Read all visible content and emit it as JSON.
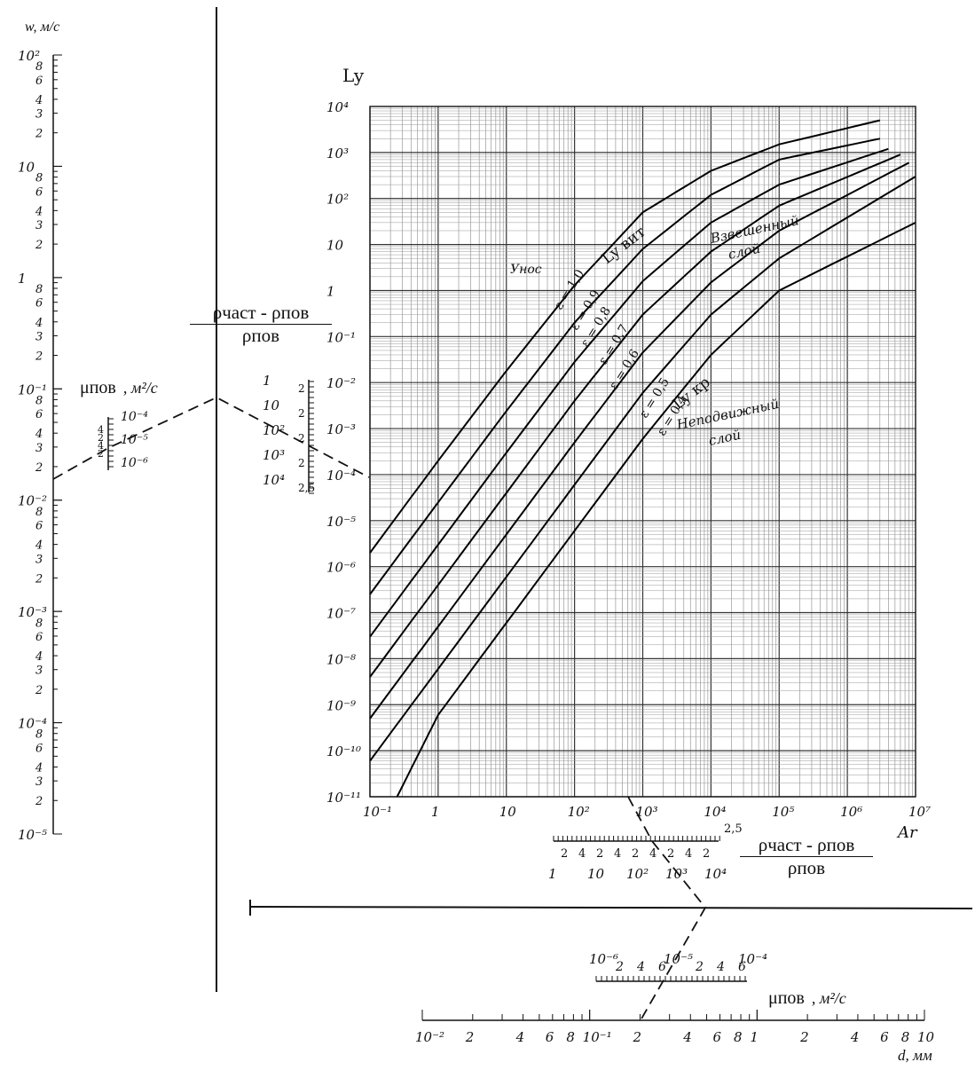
{
  "chart_data": {
    "type": "line",
    "title": "",
    "xlabel": "Ar",
    "ylabel": "Ly",
    "xscale": "log",
    "yscale": "log",
    "xlim": [
      0.1,
      10000000
    ],
    "ylim": [
      1e-11,
      10000
    ],
    "grid": true,
    "x_tick_labels": [
      "10⁻¹",
      "1",
      "10",
      "10²",
      "10³",
      "10⁴",
      "10⁵",
      "10⁶",
      "10⁷"
    ],
    "y_tick_labels": [
      "10⁴",
      "10³",
      "10²",
      "10",
      "1",
      "10⁻¹",
      "10⁻²",
      "10⁻³",
      "10⁻⁴",
      "10⁻⁵",
      "10⁻⁶",
      "10⁻⁷",
      "10⁻⁸",
      "10⁻⁹",
      "10⁻¹⁰",
      "10⁻¹¹"
    ],
    "series": [
      {
        "name": "ε = 1,0",
        "x": [
          0.1,
          1,
          10,
          100,
          1000,
          10000,
          100000,
          3000000
        ],
        "y": [
          2e-06,
          0.0002,
          0.018,
          1.3,
          50,
          400,
          1500,
          5000
        ]
      },
      {
        "name": "ε = 0,9",
        "x": [
          0.1,
          1,
          10,
          100,
          1000,
          10000,
          100000,
          3000000
        ],
        "y": [
          2.5e-07,
          2.5e-05,
          0.0024,
          0.2,
          8,
          120,
          700,
          2000
        ]
      },
      {
        "name": "ε = 0,8",
        "x": [
          0.1,
          1,
          10,
          100,
          1000,
          10000,
          100000,
          4000000
        ],
        "y": [
          3e-08,
          3e-06,
          0.0003,
          0.028,
          1.6,
          30,
          200,
          1200
        ]
      },
      {
        "name": "ε = 0,7",
        "x": [
          0.1,
          1,
          10,
          100,
          1000,
          10000,
          100000,
          6000000
        ],
        "y": [
          4e-09,
          4e-07,
          4e-05,
          0.004,
          0.3,
          7,
          70,
          900
        ]
      },
      {
        "name": "ε = 0,6",
        "x": [
          0.1,
          1,
          10,
          100,
          1000,
          10000,
          100000,
          8000000
        ],
        "y": [
          5e-10,
          5e-08,
          5e-06,
          0.0005,
          0.045,
          1.5,
          20,
          600
        ]
      },
      {
        "name": "ε = 0,5",
        "x": [
          0.1,
          1,
          10,
          100,
          1000,
          10000,
          100000,
          10000000
        ],
        "y": [
          6e-11,
          6e-09,
          6e-07,
          6e-05,
          0.006,
          0.3,
          5,
          300
        ]
      },
      {
        "name": "ε = 0,4",
        "x": [
          0.25,
          1,
          10,
          100,
          1000,
          10000,
          100000,
          10000000
        ],
        "y": [
          1e-11,
          6e-10,
          6e-08,
          6e-06,
          0.0006,
          0.04,
          1,
          30
        ]
      }
    ],
    "annotations": [
      "Ly вит",
      "Ly кр",
      "Унос",
      "Взвешенный слой",
      "Неподвижный слой",
      "ε = 1,0",
      "ε = 0,9",
      "ε = 0,8",
      "ε = 0,7",
      "ε = 0,6",
      "ε = 0,5",
      "ε = 0,4"
    ],
    "legend": "none"
  },
  "scales": {
    "w": {
      "label": "w, м/с",
      "decades": [
        "10²",
        "10",
        "1",
        "10⁻¹",
        "10⁻²",
        "10⁻³",
        "10⁻⁴",
        "10⁻⁵"
      ],
      "sub_labels": [
        "8",
        "6",
        "4",
        "3",
        "2"
      ]
    },
    "mu_left": {
      "label_sym": "μпов",
      "label_unit": ", м²/с",
      "ticks": [
        "10⁻⁴",
        "10⁻⁵",
        "10⁻⁶"
      ],
      "sub_labels": [
        "4",
        "2",
        "4",
        "2"
      ]
    },
    "rho_left": {
      "num": "ρчаст - ρпов",
      "den": "ρпов",
      "ticks": [
        "1",
        "10",
        "10²",
        "10³",
        "10⁴"
      ],
      "sub_labels": [
        "2",
        "2",
        "2",
        "2",
        "2,5"
      ]
    },
    "rho_bottom": {
      "num": "ρчаст - ρпов",
      "den": "ρпов",
      "ticks": [
        "1",
        "10",
        "10²",
        "10³",
        "10⁴"
      ],
      "sub_labels": [
        "2",
        "4",
        "2",
        "4",
        "2",
        "4",
        "2",
        "4",
        "2"
      ],
      "end_label": "2,5"
    },
    "mu_bottom": {
      "label_sym": "μпов",
      "label_unit": ", м²/с",
      "ticks": [
        "10⁻⁶",
        "10⁻⁵",
        "10⁻⁴"
      ],
      "sub_labels": [
        "2",
        "4",
        "6",
        "2",
        "4",
        "6"
      ]
    },
    "d": {
      "label": "d, мм",
      "ticks": [
        "10⁻²",
        "2",
        "4",
        "6",
        "8",
        "10⁻¹",
        "2",
        "4",
        "6",
        "8",
        "1",
        "2",
        "4",
        "6",
        "8",
        "10"
      ]
    }
  }
}
